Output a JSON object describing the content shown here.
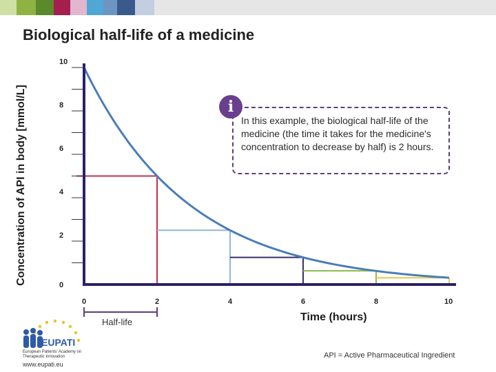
{
  "slide": {
    "title": "Biological half-life of a medicine",
    "top_band_colors": [
      "#cfe0a4",
      "#8fb343",
      "#5b8a2a",
      "#a61e4d",
      "#e3b6cf",
      "#4fa7d6",
      "#6c95c2",
      "#3a5a8c",
      "#c3cfe0"
    ]
  },
  "chart_data": {
    "type": "line",
    "title": "",
    "xlabel": "Time (hours)",
    "ylabel": "Concentration of API in body [mmol/L]",
    "x_ticks": [
      "0",
      "2",
      "4",
      "6",
      "8",
      "10"
    ],
    "y_ticks": [
      "0",
      "2",
      "4",
      "6",
      "8",
      "10"
    ],
    "xlim": [
      0,
      10
    ],
    "ylim": [
      0,
      10
    ],
    "series": [
      {
        "x": [
          0,
          1,
          2,
          3,
          4,
          5,
          6,
          7,
          8,
          9,
          10
        ],
        "y": [
          10,
          7.07,
          5,
          3.54,
          2.5,
          1.77,
          1.25,
          0.88,
          0.63,
          0.44,
          0.31
        ],
        "color": "#4a7db8"
      }
    ],
    "half_life_markers": [
      {
        "x": 2,
        "y": 5,
        "color": "#c0314a"
      },
      {
        "x": 4,
        "y": 2.5,
        "color": "#8fb7dc"
      },
      {
        "x": 6,
        "y": 1.25,
        "color": "#3b2d6b"
      },
      {
        "x": 8,
        "y": 0.63,
        "color": "#8bb84a"
      },
      {
        "x": 10,
        "y": 0.31,
        "color": "#e6c94a"
      }
    ],
    "half_life_label": "Half-life",
    "half_life_span": [
      0,
      2
    ],
    "axis_color": "#2c2068",
    "grid": false
  },
  "info": {
    "icon": "i",
    "text": "In this example, the biological half-life of the medicine (the time it takes for the medicine's concentration to decrease by half) is 2 hours."
  },
  "logo": {
    "name": "EUPATI",
    "subtitle": "European Patients' Academy on Therapeutic Innovation",
    "url": "www.eupati.eu"
  },
  "footnote": "API = Active Pharmaceutical Ingredient"
}
